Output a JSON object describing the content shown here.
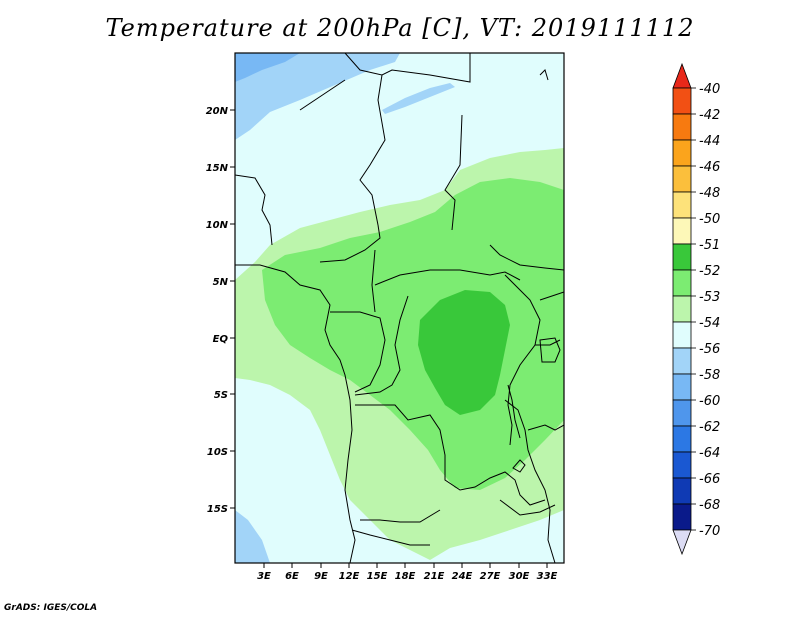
{
  "title": "Temperature at 200hPa [C], VT: 2019111112",
  "credit": "GrADS: IGES/COLA",
  "lat_labels": [
    "20N",
    "15N",
    "10N",
    "5N",
    "EQ",
    "5S",
    "10S",
    "15S"
  ],
  "lon_labels": [
    "3E",
    "6E",
    "9E",
    "12E",
    "15E",
    "18E",
    "21E",
    "24E",
    "27E",
    "30E",
    "33E"
  ],
  "colorbar": {
    "labels": [
      "-40",
      "-42",
      "-44",
      "-46",
      "-48",
      "-50",
      "-51",
      "-52",
      "-53",
      "-54",
      "-56",
      "-58",
      "-60",
      "-62",
      "-64",
      "-66",
      "-68",
      "-70"
    ],
    "colors": [
      "#e8281a",
      "#f25014",
      "#f77a10",
      "#fba41c",
      "#fbbf3c",
      "#fde27a",
      "#fdf8b8",
      "#39c83a",
      "#7cec72",
      "#bcf5ac",
      "#e0fdfd",
      "#a2d4f8",
      "#78b8f4",
      "#4f96ec",
      "#2c78e4",
      "#1a58d2",
      "#0f3ab4",
      "#0a1a8a",
      "#000064",
      "#dcdcf4"
    ]
  },
  "fill_colors": {
    "cold_deep": "#78b8f4",
    "cold": "#a2d4f8",
    "neutral": "#e0fdfd",
    "light_green": "#bcf5ac",
    "mid_green": "#7cec72",
    "dark_green": "#39c83a"
  }
}
